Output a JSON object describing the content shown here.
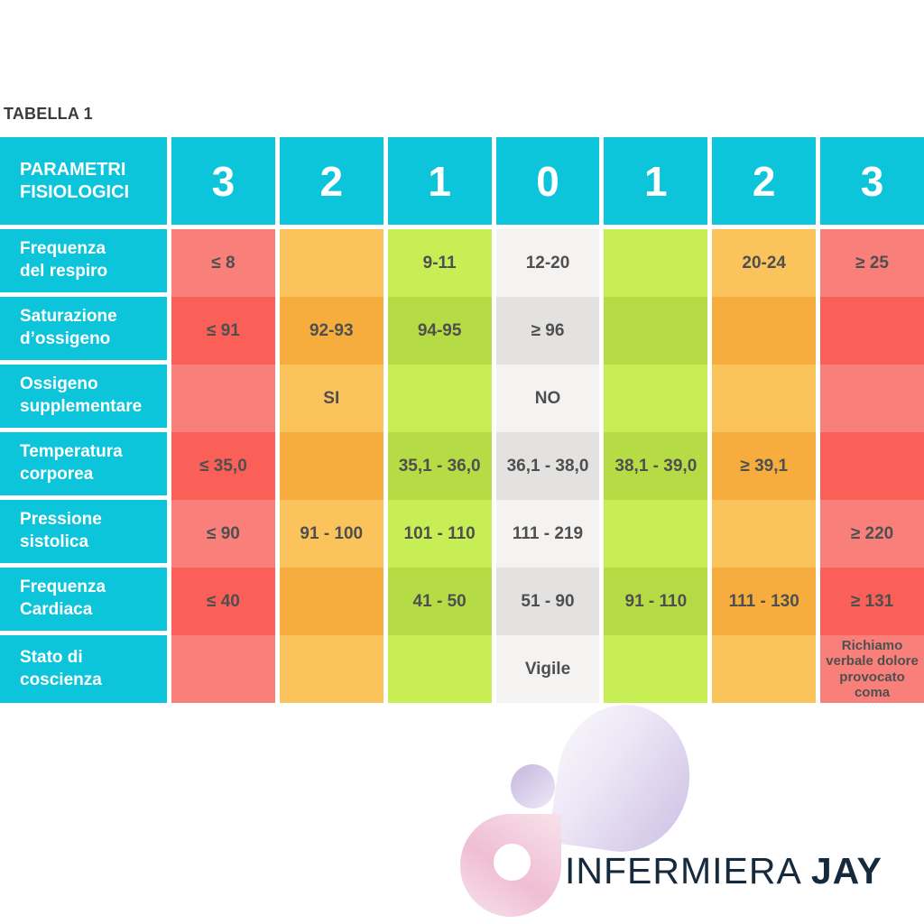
{
  "title": "TABELLA 1",
  "colors": {
    "header_cyan": "#0cc5da",
    "red_light": "#f9807a",
    "red_dark": "#fa5f58",
    "orange_light": "#fbc35c",
    "orange_dark": "#f7ad3e",
    "green_light": "#c7ef55",
    "green_dark": "#b5dc45",
    "neutral_light": "#f4f3f2",
    "neutral_dark": "#e3e2e1",
    "cell_text": "#4f4f4f",
    "title_text": "#3b3b3b",
    "brand_text": "#152a3d",
    "logo_lavender": "#d9cdeb",
    "logo_pink": "#f2c3d8"
  },
  "chart_data": {
    "type": "table",
    "title": "TABELLA 1",
    "corner_label": "PARAMETRI\nFISIOLOGICI",
    "score_columns": [
      "3",
      "2",
      "1",
      "0",
      "1",
      "2",
      "3"
    ],
    "rows": [
      {
        "label": "Frequenza\ndel respiro",
        "shade": "light",
        "cells": [
          {
            "text": "≤ 8",
            "color": "red"
          },
          {
            "text": "",
            "color": "orange"
          },
          {
            "text": "9-11",
            "color": "green"
          },
          {
            "text": "12-20",
            "color": "neutral"
          },
          {
            "text": "",
            "color": "green"
          },
          {
            "text": "20-24",
            "color": "orange"
          },
          {
            "text": "≥ 25",
            "color": "red"
          }
        ]
      },
      {
        "label": "Saturazione\nd’ossigeno",
        "shade": "dark",
        "cells": [
          {
            "text": "≤ 91",
            "color": "red"
          },
          {
            "text": "92-93",
            "color": "orange"
          },
          {
            "text": "94-95",
            "color": "green"
          },
          {
            "text": "≥ 96",
            "color": "neutral"
          },
          {
            "text": "",
            "color": "green"
          },
          {
            "text": "",
            "color": "orange"
          },
          {
            "text": "",
            "color": "red"
          }
        ]
      },
      {
        "label": "Ossigeno\nsupplementare",
        "shade": "light",
        "cells": [
          {
            "text": "",
            "color": "red"
          },
          {
            "text": "SI",
            "color": "orange"
          },
          {
            "text": "",
            "color": "green"
          },
          {
            "text": "NO",
            "color": "neutral"
          },
          {
            "text": "",
            "color": "green"
          },
          {
            "text": "",
            "color": "orange"
          },
          {
            "text": "",
            "color": "red"
          }
        ]
      },
      {
        "label": "Temperatura\ncorporea",
        "shade": "dark",
        "cells": [
          {
            "text": "≤ 35,0",
            "color": "red"
          },
          {
            "text": "",
            "color": "orange"
          },
          {
            "text": "35,1 - 36,0",
            "color": "green"
          },
          {
            "text": "36,1 - 38,0",
            "color": "neutral"
          },
          {
            "text": "38,1 - 39,0",
            "color": "green"
          },
          {
            "text": "≥ 39,1",
            "color": "orange"
          },
          {
            "text": "",
            "color": "red"
          }
        ]
      },
      {
        "label": "Pressione\nsistolica",
        "shade": "light",
        "cells": [
          {
            "text": "≤ 90",
            "color": "red"
          },
          {
            "text": "91 - 100",
            "color": "orange"
          },
          {
            "text": "101 - 110",
            "color": "green"
          },
          {
            "text": "111 - 219",
            "color": "neutral"
          },
          {
            "text": "",
            "color": "green"
          },
          {
            "text": "",
            "color": "orange"
          },
          {
            "text": "≥ 220",
            "color": "red"
          }
        ]
      },
      {
        "label": "Frequenza\nCardiaca",
        "shade": "dark",
        "cells": [
          {
            "text": "≤ 40",
            "color": "red"
          },
          {
            "text": "",
            "color": "orange"
          },
          {
            "text": "41 - 50",
            "color": "green"
          },
          {
            "text": "51 - 90",
            "color": "neutral"
          },
          {
            "text": "91 - 110",
            "color": "green"
          },
          {
            "text": "111 - 130",
            "color": "orange"
          },
          {
            "text": "≥ 131",
            "color": "red"
          }
        ]
      },
      {
        "label": "Stato di\ncoscienza",
        "shade": "light",
        "cells": [
          {
            "text": "",
            "color": "red"
          },
          {
            "text": "",
            "color": "orange"
          },
          {
            "text": "",
            "color": "green"
          },
          {
            "text": "Vigile",
            "color": "neutral"
          },
          {
            "text": "",
            "color": "green"
          },
          {
            "text": "",
            "color": "orange"
          },
          {
            "text": "Richiamo verbale dolore provocato coma",
            "color": "red"
          }
        ]
      }
    ]
  },
  "footer": {
    "brand_regular": "INFERMIERA",
    "brand_bold": "JAY"
  }
}
